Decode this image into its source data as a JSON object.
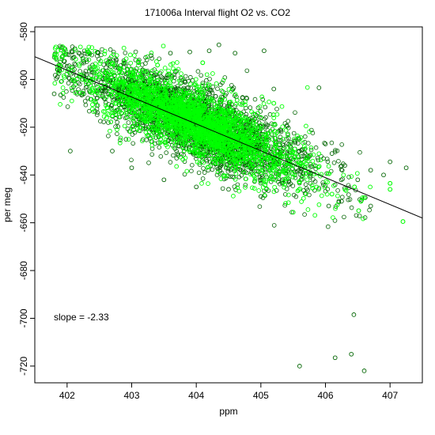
{
  "chart_data": {
    "type": "scatter",
    "title": "171006a   Interval flight O2 vs. CO2",
    "xlabel": "ppm",
    "ylabel": "per meg",
    "xlim": [
      401.5,
      407.5
    ],
    "ylim": [
      -727,
      -578
    ],
    "x_ticks": [
      402,
      403,
      404,
      405,
      406,
      407
    ],
    "y_ticks": [
      -580,
      -600,
      -620,
      -640,
      -660,
      -680,
      -700,
      -720
    ],
    "annotation": "slope =  -2.33",
    "fit_line": {
      "slope": -2.33,
      "points": [
        [
          401.5,
          -590.5
        ],
        [
          407.5,
          -658.0
        ]
      ]
    },
    "series": [
      {
        "marker": "open-circle",
        "color": "#006400",
        "cluster": {
          "center": [
            404.0,
            -618.0
          ],
          "major_axis_slope": -11.4,
          "spread_x": 1.0,
          "spread_y_resid": 8.0
        },
        "points": [
          [
            407.25,
            -637.0
          ],
          [
            407.0,
            -634.5
          ],
          [
            406.9,
            -640.0
          ],
          [
            406.7,
            -638.0
          ],
          [
            406.5,
            -642.0
          ],
          [
            406.3,
            -636.0
          ],
          [
            406.1,
            -631.0
          ],
          [
            406.0,
            -627.0
          ],
          [
            405.9,
            -603.5
          ],
          [
            402.05,
            -630.0
          ],
          [
            401.9,
            -606.5
          ],
          [
            401.85,
            -599.0
          ],
          [
            401.8,
            -606.0
          ],
          [
            402.1,
            -603.0
          ],
          [
            402.3,
            -598.0
          ],
          [
            402.6,
            -603.0
          ],
          [
            402.8,
            -604.0
          ],
          [
            403.0,
            -600.5
          ],
          [
            403.3,
            -590.0
          ],
          [
            403.6,
            -589.0
          ],
          [
            403.9,
            -588.5
          ],
          [
            404.2,
            -588.0
          ],
          [
            404.35,
            -585.5
          ],
          [
            404.6,
            -589.0
          ],
          [
            405.05,
            -588.0
          ],
          [
            405.2,
            -604.0
          ],
          [
            405.0,
            -649.0
          ],
          [
            404.5,
            -646.0
          ],
          [
            404.0,
            -645.0
          ],
          [
            403.5,
            -642.0
          ],
          [
            403.0,
            -637.0
          ],
          [
            402.7,
            -630.0
          ],
          [
            406.05,
            -653.0
          ],
          [
            406.25,
            -651.0
          ],
          [
            406.44,
            -698.5
          ],
          [
            406.4,
            -715.0
          ],
          [
            405.6,
            -720.0
          ],
          [
            406.15,
            -716.5
          ],
          [
            406.6,
            -722.0
          ],
          [
            406.7,
            -653.0
          ]
        ]
      },
      {
        "marker": "open-circle",
        "color": "#00ff00",
        "points": [
          [
            406.6,
            -649.5
          ],
          [
            406.55,
            -651.0
          ],
          [
            407.0,
            -643.5
          ],
          [
            407.0,
            -646.0
          ],
          [
            407.2,
            -659.5
          ],
          [
            406.45,
            -645.0
          ],
          [
            406.1,
            -648.0
          ],
          [
            405.8,
            -645.5
          ],
          [
            405.6,
            -643.0
          ],
          [
            402.45,
            -599.0
          ],
          [
            402.7,
            -597.0
          ],
          [
            403.0,
            -598.5
          ],
          [
            403.4,
            -594.0
          ],
          [
            404.1,
            -593.0
          ],
          [
            405.2,
            -610.0
          ]
        ]
      }
    ]
  }
}
